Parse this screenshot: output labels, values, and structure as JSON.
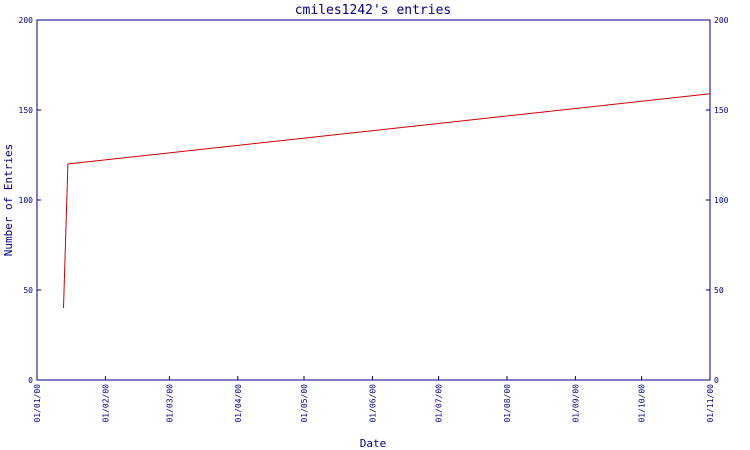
{
  "chart_data": {
    "type": "line",
    "title": "cmiles1242's entries",
    "xlabel": "Date",
    "ylabel": "Number of Entries",
    "x_ticks": [
      "01/01/00",
      "01/02/00",
      "01/03/00",
      "01/04/00",
      "01/05/00",
      "01/06/00",
      "01/07/00",
      "01/08/00",
      "01/09/00",
      "01/10/00",
      "01/11/00"
    ],
    "y_ticks": [
      0,
      50,
      100,
      150,
      200
    ],
    "ylim": [
      0,
      200
    ],
    "grid": false,
    "dual_y_axis": true,
    "series": [
      {
        "color": "#cc0000",
        "points": [
          {
            "x": "2000-01-13",
            "y": 40
          },
          {
            "x": "2000-01-15",
            "y": 120
          },
          {
            "x": "2000-11-01",
            "y": 159
          }
        ]
      }
    ]
  },
  "colors": {
    "axis": "#000080",
    "text": "#000080",
    "line": "#cc0000",
    "background": "#ffffff"
  }
}
